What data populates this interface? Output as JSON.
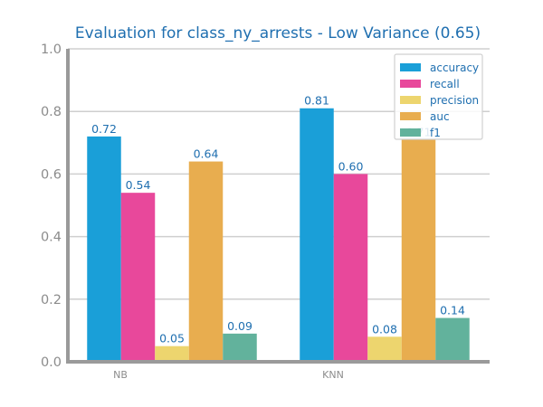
{
  "chart_data": {
    "type": "bar",
    "title": "Evaluation for class_ny_arrests - Low Variance (0.65)",
    "categories": [
      "NB",
      "KNN"
    ],
    "series": [
      {
        "name": "accuracy",
        "values": [
          0.72,
          0.81
        ],
        "labels": [
          "0.72",
          "0.81"
        ],
        "color": "#1a9fd8"
      },
      {
        "name": "recall",
        "values": [
          0.54,
          0.6
        ],
        "labels": [
          "0.54",
          "0.60"
        ],
        "color": "#e8489b"
      },
      {
        "name": "precision",
        "values": [
          0.05,
          0.08
        ],
        "labels": [
          "0.05",
          "0.08"
        ],
        "color": "#edd56e"
      },
      {
        "name": "auc",
        "values": [
          0.64,
          0.71
        ],
        "labels": [
          "0.64",
          "0.71"
        ],
        "color": "#e8ad4f"
      },
      {
        "name": "f1",
        "values": [
          0.09,
          0.14
        ],
        "labels": [
          "0.09",
          "0.14"
        ],
        "color": "#62b29c"
      }
    ],
    "ylim": [
      0,
      1
    ],
    "yticks": [
      "0.0",
      "0.2",
      "0.4",
      "0.6",
      "0.8",
      "1.0"
    ],
    "grid": true,
    "legend_position": "top-right",
    "xlabel": "",
    "ylabel": ""
  }
}
